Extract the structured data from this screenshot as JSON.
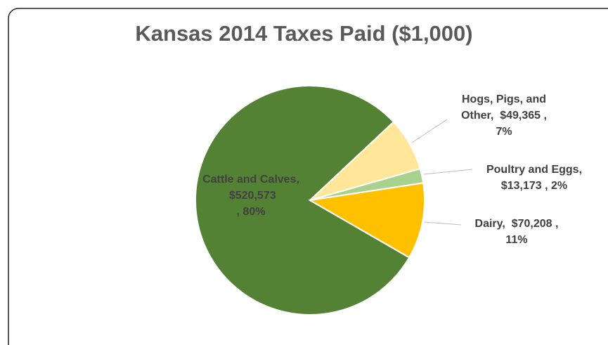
{
  "chart_data": {
    "type": "pie",
    "title": "Kansas 2014 Taxes Paid ($1,000)",
    "categories": [
      "Cattle and Calves",
      "Hogs, Pigs, and Other",
      "Poultry and Eggs",
      "Dairy"
    ],
    "values": [
      520573,
      49365,
      13173,
      70208
    ],
    "value_labels": [
      "$520,573",
      "$49,365",
      "$13,173",
      "$70,208"
    ],
    "percentages": [
      80,
      7,
      2,
      11
    ],
    "percentage_labels": [
      "80%",
      "7%",
      "2%",
      "11%"
    ],
    "colors": [
      "#548235",
      "#ffe699",
      "#a9d18e",
      "#ffc000"
    ]
  }
}
